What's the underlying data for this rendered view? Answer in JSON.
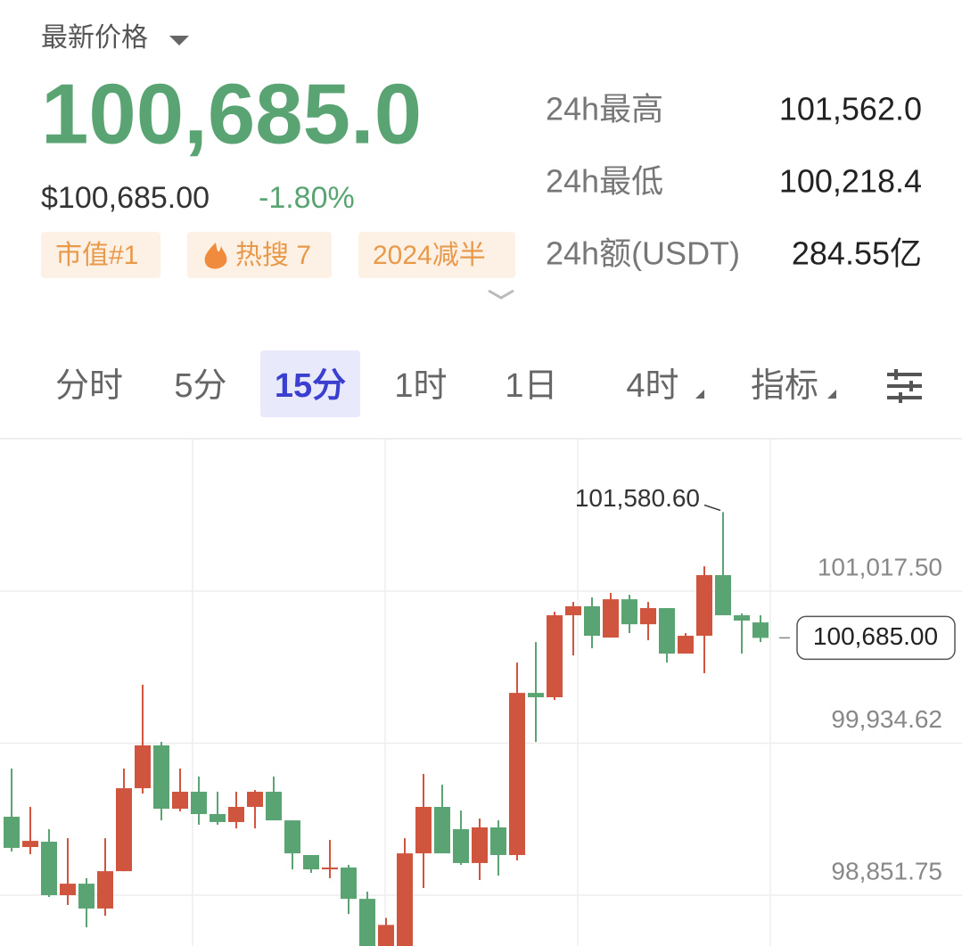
{
  "header": {
    "title": "最新价格",
    "price": "100,685.0",
    "usd_price": "$100,685.00",
    "change": "-1.80%",
    "tags": [
      "市值#1",
      "热搜 7",
      "2024减半"
    ],
    "stats": [
      {
        "label": "24h最高",
        "value": "101,562.0"
      },
      {
        "label": "24h最低",
        "value": "100,218.4"
      },
      {
        "label": "24h额(USDT)",
        "value": "284.55亿"
      }
    ]
  },
  "tabs": {
    "items": [
      "分时",
      "5分",
      "15分",
      "1时",
      "1日",
      "4时",
      "指标"
    ],
    "active": 2
  },
  "chart_data": {
    "type": "candlestick",
    "up_color": "#d0553f",
    "down_color": "#5aa473",
    "grid": true,
    "ylim": [
      98490,
      102104
    ],
    "yticks": [
      {
        "value": 98851.75,
        "label": "98,851.75"
      },
      {
        "value": 99934.62,
        "label": "99,934.62"
      },
      {
        "value": 101017.5,
        "label": "101,017.50"
      }
    ],
    "open": [
      99411,
      99195,
      99233,
      98852,
      98934,
      98757,
      99023,
      99614,
      99919,
      99468,
      99589,
      99430,
      99373,
      99481,
      99589,
      99385,
      99138,
      99036,
      99049,
      98826,
      98350,
      98420,
      99150,
      99481,
      99322,
      99081,
      99335,
      99138,
      100293,
      100262,
      100846,
      100910,
      100687,
      100960,
      100782,
      100897,
      100573,
      100700,
      101132,
      100846,
      100795
    ],
    "high": [
      99754,
      99481,
      99322,
      99258,
      98973,
      99258,
      99754,
      100351,
      99944,
      99754,
      99697,
      99589,
      99589,
      99601,
      99697,
      99385,
      99138,
      99246,
      99068,
      98877,
      98690,
      99258,
      99716,
      99639,
      99455,
      99398,
      99385,
      100509,
      100655,
      100871,
      100941,
      100973,
      101005,
      100992,
      100941,
      100897,
      100719,
      101195,
      101580.6,
      100859,
      100846
    ],
    "low": [
      99163,
      99144,
      98839,
      98782,
      98623,
      98706,
      99023,
      99576,
      99385,
      99449,
      99354,
      99354,
      99328,
      99328,
      99385,
      99036,
      99011,
      98973,
      98718,
      98433,
      98300,
      98380,
      98903,
      99150,
      99068,
      98960,
      98992,
      99100,
      99944,
      100243,
      100560,
      100611,
      100687,
      100719,
      100668,
      100509,
      100573,
      100433,
      100846,
      100573,
      100655
    ],
    "close": [
      99189,
      99239,
      98852,
      98934,
      98757,
      99023,
      99614,
      99919,
      99468,
      99589,
      99430,
      99373,
      99481,
      99589,
      99385,
      99150,
      99036,
      99049,
      98826,
      98450,
      98640,
      99150,
      99481,
      99150,
      99081,
      99335,
      99138,
      100293,
      100262,
      100846,
      100910,
      100700,
      100960,
      100782,
      100897,
      100573,
      100700,
      101132,
      100846,
      100808,
      100685
    ],
    "max_label": {
      "value": 101580.6,
      "label": "101,580.60"
    },
    "last_price": {
      "value": 100685,
      "label": "100,685.00"
    }
  }
}
